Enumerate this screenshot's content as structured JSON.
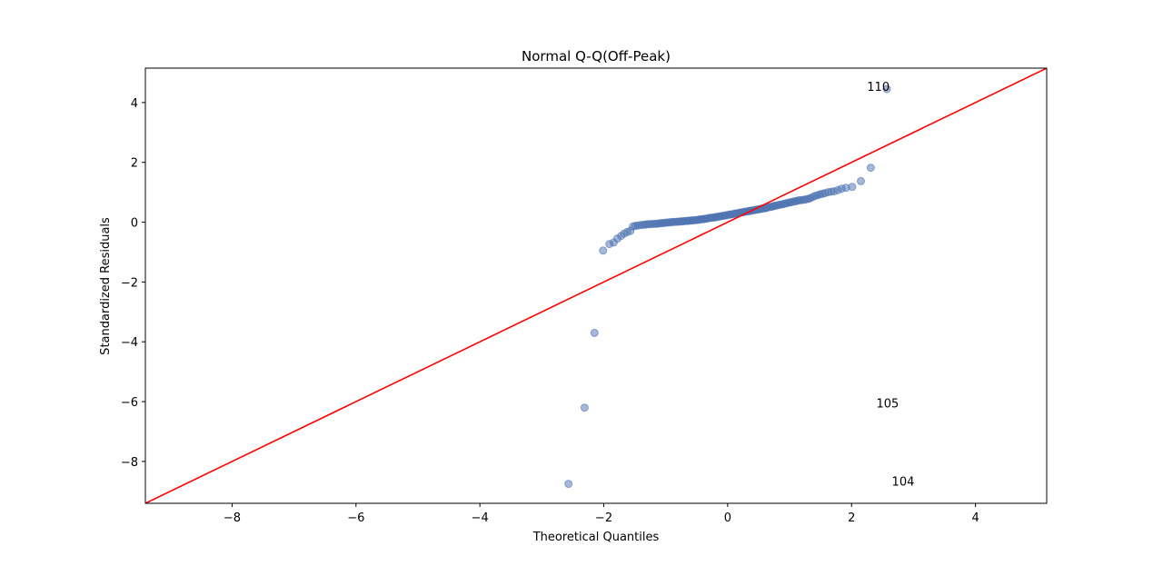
{
  "chart_data": {
    "type": "scatter",
    "title": "Normal Q-Q(Off-Peak)",
    "xlabel": "Theoretical Quantiles",
    "ylabel": "Standardized Residuals",
    "xlim": [
      -9.4,
      5.15
    ],
    "ylim": [
      -9.4,
      5.15
    ],
    "xticks": [
      -8,
      -6,
      -4,
      -2,
      0,
      2,
      4
    ],
    "yticks": [
      -8,
      -6,
      -4,
      -2,
      0,
      2,
      4
    ],
    "xtick_labels": [
      "−8",
      "−6",
      "−4",
      "−2",
      "0",
      "2",
      "4"
    ],
    "ytick_labels": [
      "−8",
      "−6",
      "−4",
      "−2",
      "0",
      "2",
      "4"
    ],
    "reference_line": {
      "name": "45-degree line",
      "color": "#ff0000",
      "slope": 1,
      "intercept": 0
    },
    "series": [
      {
        "name": "residuals",
        "color": "#4c72b0",
        "x": [
          -2.57,
          -2.31,
          -2.15,
          -2.01,
          -1.91,
          -1.84,
          -1.78,
          -1.72,
          -1.67,
          -1.62,
          -1.57,
          -1.53,
          -1.49,
          -1.45,
          -1.41,
          -1.37,
          -1.33,
          -1.3,
          -1.26,
          -1.23,
          -1.19,
          -1.16,
          -1.13,
          -1.1,
          -1.07,
          -1.04,
          -1.01,
          -0.98,
          -0.95,
          -0.92,
          -0.89,
          -0.86,
          -0.83,
          -0.8,
          -0.77,
          -0.74,
          -0.72,
          -0.69,
          -0.66,
          -0.63,
          -0.61,
          -0.58,
          -0.55,
          -0.53,
          -0.5,
          -0.47,
          -0.45,
          -0.42,
          -0.39,
          -0.37,
          -0.34,
          -0.32,
          -0.29,
          -0.26,
          -0.24,
          -0.21,
          -0.19,
          -0.16,
          -0.13,
          -0.11,
          -0.08,
          -0.05,
          -0.03,
          0.0,
          0.03,
          0.05,
          0.08,
          0.11,
          0.13,
          0.16,
          0.19,
          0.21,
          0.24,
          0.26,
          0.29,
          0.32,
          0.34,
          0.37,
          0.39,
          0.42,
          0.45,
          0.47,
          0.5,
          0.53,
          0.55,
          0.58,
          0.61,
          0.63,
          0.66,
          0.69,
          0.72,
          0.74,
          0.77,
          0.8,
          0.83,
          0.86,
          0.89,
          0.92,
          0.95,
          0.98,
          1.01,
          1.04,
          1.07,
          1.1,
          1.13,
          1.16,
          1.19,
          1.23,
          1.26,
          1.3,
          1.33,
          1.37,
          1.41,
          1.45,
          1.49,
          1.53,
          1.57,
          1.62,
          1.67,
          1.72,
          1.78,
          1.84,
          1.91,
          2.01,
          2.15,
          2.31,
          2.57
        ],
        "y": [
          -8.75,
          -6.2,
          -3.7,
          -0.95,
          -0.73,
          -0.68,
          -0.55,
          -0.46,
          -0.38,
          -0.33,
          -0.29,
          -0.14,
          -0.12,
          -0.11,
          -0.1,
          -0.09,
          -0.08,
          -0.07,
          -0.07,
          -0.06,
          -0.06,
          -0.05,
          -0.05,
          -0.04,
          -0.03,
          -0.03,
          -0.02,
          -0.01,
          -0.01,
          0.0,
          0.0,
          0.01,
          0.01,
          0.02,
          0.02,
          0.03,
          0.03,
          0.04,
          0.04,
          0.05,
          0.05,
          0.06,
          0.06,
          0.07,
          0.07,
          0.08,
          0.09,
          0.1,
          0.1,
          0.11,
          0.12,
          0.13,
          0.14,
          0.15,
          0.15,
          0.16,
          0.17,
          0.18,
          0.19,
          0.2,
          0.21,
          0.22,
          0.23,
          0.24,
          0.25,
          0.26,
          0.27,
          0.28,
          0.29,
          0.3,
          0.31,
          0.32,
          0.33,
          0.34,
          0.35,
          0.36,
          0.37,
          0.38,
          0.39,
          0.4,
          0.41,
          0.42,
          0.43,
          0.44,
          0.45,
          0.46,
          0.47,
          0.48,
          0.5,
          0.51,
          0.52,
          0.54,
          0.55,
          0.56,
          0.58,
          0.59,
          0.6,
          0.62,
          0.63,
          0.65,
          0.66,
          0.68,
          0.69,
          0.7,
          0.72,
          0.73,
          0.74,
          0.75,
          0.76,
          0.78,
          0.8,
          0.84,
          0.88,
          0.9,
          0.93,
          0.95,
          0.97,
          1.0,
          1.02,
          1.03,
          1.07,
          1.12,
          1.15,
          1.18,
          1.37,
          1.82,
          4.45
        ]
      }
    ],
    "annotations": [
      {
        "text": "110",
        "x": 2.25,
        "y": 4.55
      },
      {
        "text": "105",
        "x": 2.4,
        "y": -6.05
      },
      {
        "text": "104",
        "x": 2.65,
        "y": -8.65
      }
    ]
  }
}
